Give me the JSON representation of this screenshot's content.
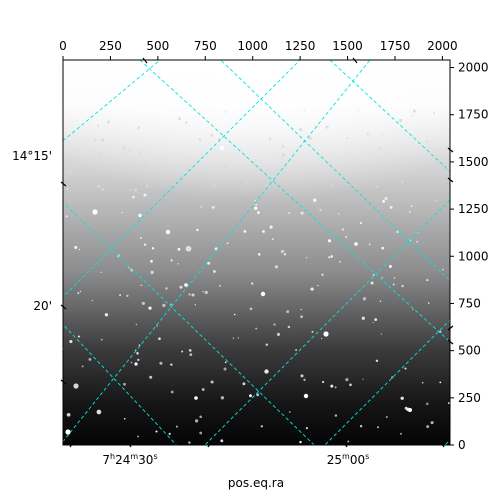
{
  "chart_data": {
    "type": "image",
    "xlabel": "pos.eq.ra",
    "pixel_axes": {
      "x": {
        "min": 0,
        "max": 2040,
        "ticks": [
          0,
          250,
          500,
          750,
          1000,
          1250,
          1500,
          1750,
          2000
        ]
      },
      "y": {
        "min": 0,
        "max": 2040,
        "ticks": [
          0,
          250,
          500,
          750,
          1000,
          1250,
          1500,
          1750,
          2000
        ]
      }
    },
    "world_axes": {
      "ra_tick_labels": [
        "7h24m30s",
        "25m00s"
      ],
      "dec_tick_labels": [
        "14°15'",
        "20'"
      ]
    },
    "grid": true,
    "grid_color": "#00e5e5",
    "colormap": "gray",
    "image_content": "star field with bright sky background at bottom fading to white at top"
  }
}
